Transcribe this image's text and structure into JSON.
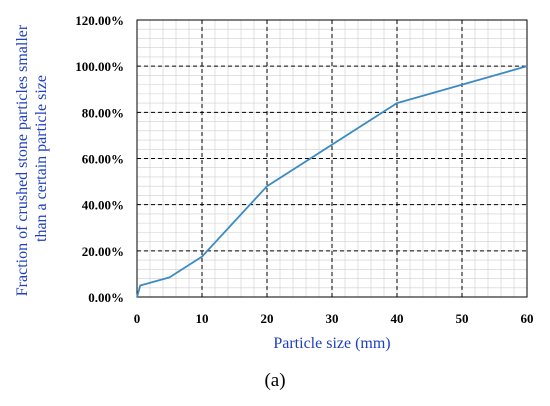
{
  "chart_data": {
    "type": "line",
    "xlabel": "Particle size (mm)",
    "ylabel_lines": [
      "Fraction of crushed stone particles smaller",
      "than a certain particle size"
    ],
    "x_ticks": [
      0,
      10,
      20,
      30,
      40,
      50,
      60
    ],
    "y_ticks": [
      "0.00%",
      "20.00%",
      "40.00%",
      "60.00%",
      "80.00%",
      "100.00%",
      "120.00%"
    ],
    "xlim": [
      0,
      60
    ],
    "ylim": [
      0,
      120
    ],
    "grid": true,
    "colors": {
      "line": "#3b8bc2",
      "axis_title": "#1f3fbf",
      "major_grid": "#000000",
      "minor_grid": "#cfcfcf"
    },
    "series": [
      {
        "x": [
          0,
          0.5,
          5,
          10,
          20,
          40,
          60
        ],
        "y": [
          0,
          5,
          8.5,
          17.5,
          48,
          84,
          100
        ]
      }
    ]
  },
  "caption": "(a)"
}
